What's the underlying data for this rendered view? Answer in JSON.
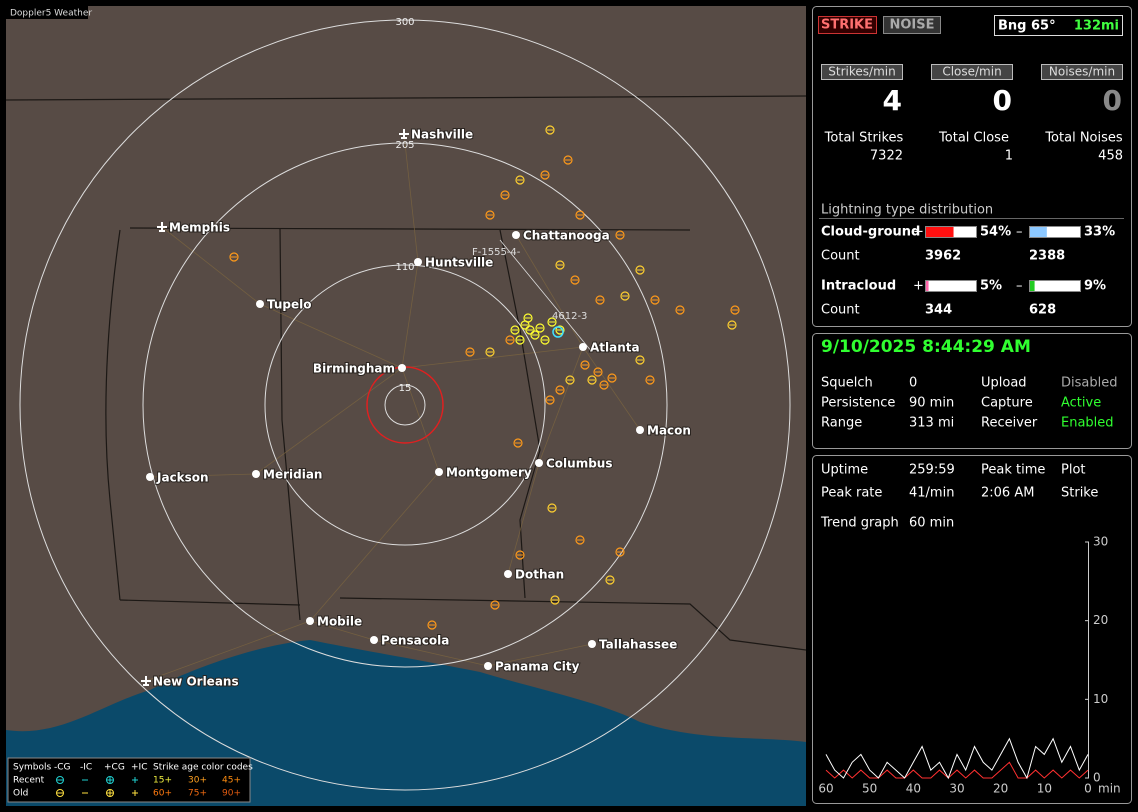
{
  "map": {
    "title": "Doppler5 Weather",
    "ring_labels": [
      "300",
      "205",
      "110",
      "15"
    ],
    "cities": [
      "Nashville",
      "Memphis",
      "Chattanooga",
      "Huntsville",
      "Tupelo",
      "Atlanta",
      "Birmingham",
      "Macon",
      "Jackson",
      "Meridian",
      "Montgomery",
      "Columbus",
      "Dothan",
      "Mobile",
      "Pensacola",
      "Tallahassee",
      "Panama City",
      "New Orleans"
    ],
    "stations": [
      "F-1555-4-",
      "4612-3"
    ],
    "legend": {
      "symbols": "Symbols",
      "columns": [
        "-CG",
        "-IC",
        "+CG",
        "+IC"
      ],
      "rows": [
        "Recent",
        "Old"
      ],
      "age_title": "Strike age color codes",
      "age_codes": [
        [
          "15+",
          "30+",
          "45+"
        ],
        [
          "60+",
          "75+",
          "90+"
        ]
      ]
    }
  },
  "header": {
    "strike": "STRIKE",
    "noise": "NOISE",
    "bearing": "Bng 65°",
    "distance": "132mi"
  },
  "counters": [
    {
      "label": "Strikes/min",
      "value": 4
    },
    {
      "label": "Close/min",
      "value": 0
    },
    {
      "label": "Noises/min",
      "value": 0
    }
  ],
  "totals": [
    {
      "label": "Total Strikes",
      "value": 7322
    },
    {
      "label": "Total Close",
      "value": 1
    },
    {
      "label": "Total Noises",
      "value": 458
    }
  ],
  "distribution": {
    "title": "Lightning type distribution",
    "count_label": "Count",
    "rows": [
      {
        "name": "Cloud-ground",
        "positive": {
          "sign": "+",
          "value": 54,
          "value_label": "54%",
          "count": 3962,
          "color": "#ff1010"
        },
        "negative": {
          "sign": "–",
          "value": 33,
          "value_label": "33%",
          "count": 2388,
          "color": "#8cc8ff"
        }
      },
      {
        "name": "Intracloud",
        "positive": {
          "sign": "+",
          "value": 5,
          "value_label": "5%",
          "count": 344,
          "color": "#ff66aa"
        },
        "negative": {
          "sign": "–",
          "value": 9,
          "value_label": "9%",
          "count": 628,
          "color": "#22cc22"
        }
      }
    ]
  },
  "status": {
    "datetime": "9/10/2025 8:44:29 AM",
    "items": [
      {
        "label": "Squelch",
        "value": "0"
      },
      {
        "label": "Persistence",
        "value": "90 min"
      },
      {
        "label": "Range",
        "value": "313 mi"
      },
      {
        "label": "Upload",
        "value": "Disabled"
      },
      {
        "label": "Capture",
        "value": "Active"
      },
      {
        "label": "Receiver",
        "value": "Enabled"
      }
    ]
  },
  "stats": {
    "uptime": {
      "label": "Uptime",
      "value": "259:59"
    },
    "peak_rate": {
      "label": "Peak rate",
      "value": "41/min"
    },
    "peak_time": {
      "label": "Peak time",
      "value": "2:06 AM"
    },
    "plot": {
      "label": "Plot",
      "value": "Strike"
    },
    "trend_graph": {
      "label": "Trend graph",
      "value": "60 min"
    }
  },
  "trend_chart": {
    "type": "line",
    "x": [
      60,
      58,
      56,
      54,
      52,
      50,
      48,
      46,
      44,
      42,
      40,
      38,
      36,
      34,
      32,
      30,
      28,
      26,
      24,
      22,
      20,
      18,
      16,
      14,
      12,
      10,
      8,
      6,
      4,
      2,
      0
    ],
    "xlim": [
      60,
      0
    ],
    "xticks": [
      60,
      50,
      40,
      30,
      20,
      10,
      0
    ],
    "x_unit": "min",
    "ylim": [
      0,
      30
    ],
    "yticks": [
      30,
      20,
      10,
      0
    ],
    "series": [
      {
        "color": "#ffffff",
        "values": [
          3,
          1,
          0,
          2,
          3,
          1,
          0,
          2,
          1,
          0,
          2,
          4,
          1,
          2,
          0,
          3,
          1,
          4,
          2,
          1,
          3,
          5,
          2,
          0,
          4,
          3,
          5,
          2,
          4,
          1,
          3
        ]
      },
      {
        "color": "#ff3030",
        "values": [
          1,
          0,
          1,
          0,
          1,
          0,
          0,
          1,
          0,
          0,
          1,
          0,
          0,
          1,
          0,
          1,
          0,
          1,
          0,
          0,
          1,
          2,
          0,
          0,
          1,
          0,
          1,
          0,
          1,
          0,
          1
        ]
      }
    ]
  }
}
